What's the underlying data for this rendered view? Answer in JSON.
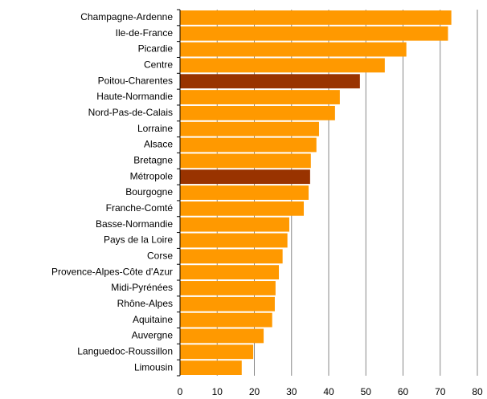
{
  "chart_data": {
    "type": "hbar",
    "categories": [
      "Champagne-Ardenne",
      "Ile-de-France",
      "Picardie",
      "Centre",
      "Poitou-Charentes",
      "Haute-Normandie",
      "Nord-Pas-de-Calais",
      "Lorraine",
      "Alsace",
      "Bretagne",
      "Métropole",
      "Bourgogne",
      "Franche-Comté",
      "Basse-Normandie",
      "Pays de la Loire",
      "Corse",
      "Provence-Alpes-Côte d'Azur",
      "Midi-Pyrénées",
      "Rhône-Alpes",
      "Aquitaine",
      "Auvergne",
      "Languedoc-Roussillon",
      "Limousin"
    ],
    "values": [
      73,
      72.1,
      60.9,
      55.1,
      48.4,
      43,
      41.7,
      37.4,
      36.7,
      35.2,
      35,
      34.6,
      33.3,
      29.4,
      28.9,
      27.6,
      26.6,
      25.7,
      25.5,
      24.8,
      22.5,
      19.7,
      16.6
    ],
    "colors": [
      "#ff9900",
      "#ff9900",
      "#ff9900",
      "#ff9900",
      "#993300",
      "#ff9900",
      "#ff9900",
      "#ff9900",
      "#ff9900",
      "#ff9900",
      "#993300",
      "#ff9900",
      "#ff9900",
      "#ff9900",
      "#ff9900",
      "#ff9900",
      "#ff9900",
      "#ff9900",
      "#ff9900",
      "#ff9900",
      "#ff9900",
      "#ff9900",
      "#ff9900"
    ],
    "xlim": [
      0,
      80
    ],
    "xticks": [
      0,
      10,
      20,
      30,
      40,
      50,
      60,
      70,
      80
    ],
    "grid": true
  }
}
